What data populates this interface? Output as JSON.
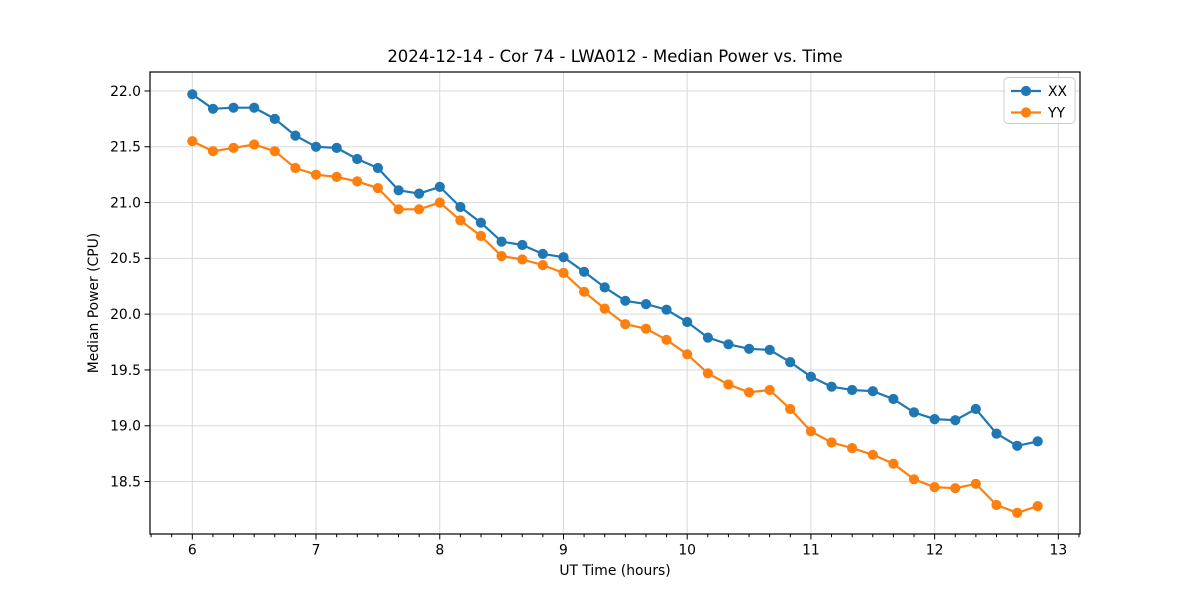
{
  "chart_data": {
    "type": "line",
    "title": "2024-12-14 - Cor 74 - LWA012 - Median Power vs. Time",
    "xlabel": "UT Time (hours)",
    "ylabel": "Median Power (CPU)",
    "xlim": [
      5.658,
      13.175
    ],
    "ylim": [
      18.03,
      22.17
    ],
    "xticks": [
      6,
      7,
      8,
      9,
      10,
      11,
      12,
      13
    ],
    "xtick_labels": [
      "6",
      "7",
      "8",
      "9",
      "10",
      "11",
      "12",
      "13"
    ],
    "xtick_minor_step": 0.166667,
    "yticks": [
      18.5,
      19.0,
      19.5,
      20.0,
      20.5,
      21.0,
      21.5,
      22.0
    ],
    "ytick_labels": [
      "18.5",
      "19.0",
      "19.5",
      "20.0",
      "20.5",
      "21.0",
      "21.5",
      "22.0"
    ],
    "grid": true,
    "grid_color": "#d9d9d9",
    "spine_color": "#000000",
    "legend_position": "upper right",
    "x": [
      6.0,
      6.167,
      6.333,
      6.5,
      6.667,
      6.833,
      7.0,
      7.167,
      7.333,
      7.5,
      7.667,
      7.833,
      8.0,
      8.167,
      8.333,
      8.5,
      8.667,
      8.833,
      9.0,
      9.167,
      9.333,
      9.5,
      9.667,
      9.833,
      10.0,
      10.167,
      10.333,
      10.5,
      10.667,
      10.833,
      11.0,
      11.167,
      11.333,
      11.5,
      11.667,
      11.833,
      12.0,
      12.167,
      12.333,
      12.5,
      12.667,
      12.833
    ],
    "series": [
      {
        "name": "XX",
        "color": "#1f77b4",
        "values": [
          21.97,
          21.84,
          21.85,
          21.85,
          21.75,
          21.6,
          21.5,
          21.49,
          21.39,
          21.31,
          21.11,
          21.08,
          21.14,
          20.96,
          20.82,
          20.65,
          20.62,
          20.54,
          20.51,
          20.38,
          20.24,
          20.12,
          20.09,
          20.04,
          19.93,
          19.79,
          19.73,
          19.69,
          19.68,
          19.57,
          19.44,
          19.35,
          19.32,
          19.31,
          19.24,
          19.12,
          19.06,
          19.05,
          19.15,
          18.93,
          18.82,
          18.86
        ]
      },
      {
        "name": "YY",
        "color": "#ff7f0e",
        "values": [
          21.55,
          21.46,
          21.49,
          21.52,
          21.46,
          21.31,
          21.25,
          21.23,
          21.19,
          21.13,
          20.94,
          20.94,
          21.0,
          20.84,
          20.7,
          20.52,
          20.49,
          20.44,
          20.37,
          20.2,
          20.05,
          19.91,
          19.87,
          19.77,
          19.64,
          19.47,
          19.37,
          19.3,
          19.32,
          19.15,
          18.95,
          18.85,
          18.8,
          18.74,
          18.66,
          18.52,
          18.45,
          18.44,
          18.48,
          18.29,
          18.22,
          18.28
        ]
      }
    ]
  }
}
